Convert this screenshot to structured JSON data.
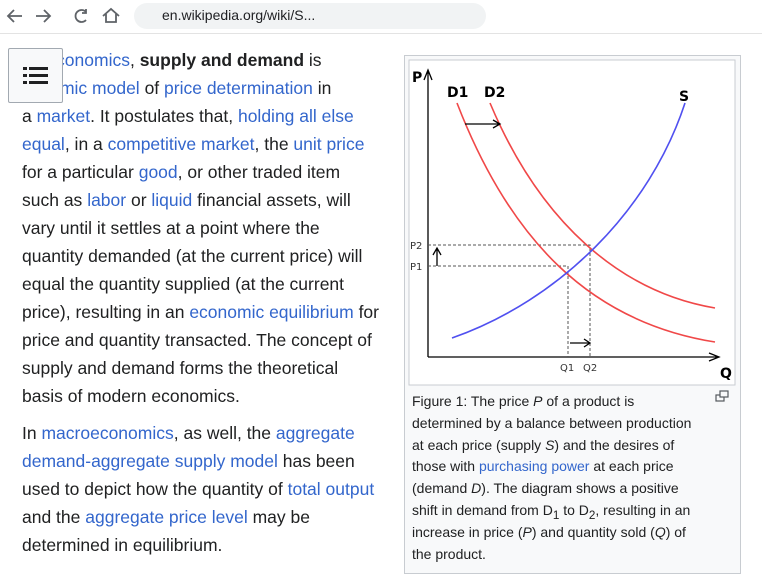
{
  "browser": {
    "url": "en.wikipedia.org/wiki/S..."
  },
  "article": {
    "paragraphs": [
      {
        "lines": [
          [
            "croeconomics",
            ", ",
            "supply and demand",
            " is"
          ],
          [
            "conomic model",
            " of ",
            "price determination",
            " in"
          ],
          [
            "a ",
            "market",
            ". It postulates that, ",
            "holding all else"
          ],
          [
            "equal",
            ", in a ",
            "competitive market",
            ", the ",
            "unit price"
          ],
          [
            "for a particular ",
            "good",
            ", or other traded item"
          ],
          [
            "such as ",
            "labor",
            " or ",
            "liquid",
            " financial assets, will"
          ],
          [
            "vary until it settles at a point where the"
          ],
          [
            "quantity demanded (at the current price) will"
          ],
          [
            "equal the quantity supplied (at the current"
          ],
          [
            "price), resulting in an ",
            "economic equilibrium",
            " for"
          ],
          [
            "price and quantity transacted. The concept of"
          ],
          [
            "supply and demand forms the theoretical"
          ],
          [
            "basis of modern economics."
          ]
        ]
      },
      {
        "lines": [
          [
            "In ",
            "macroeconomics",
            ", as well, the ",
            "aggregate"
          ],
          [
            "demand-aggregate supply model",
            " has been"
          ],
          [
            "used to depict how the quantity of ",
            "total output"
          ],
          [
            "and the ",
            "aggregate price level",
            " may be"
          ],
          [
            "determined in equilibrium."
          ]
        ]
      }
    ]
  },
  "figure": {
    "diagram": {
      "p_axis": "P",
      "q_axis": "Q",
      "d1": "D1",
      "d2": "D2",
      "s": "S",
      "p1": "P1",
      "p2": "P2",
      "q1": "Q1",
      "q2": "Q2"
    },
    "caption": [
      [
        "Figure 1: The price ",
        "P",
        " of a product is"
      ],
      [
        "determined by a balance between production"
      ],
      [
        "at each price (supply ",
        "S",
        ") and the desires of"
      ],
      [
        "those with ",
        "purchasing power",
        " at each price"
      ],
      [
        "(demand ",
        "D",
        "). The diagram shows a positive"
      ],
      [
        "shift in demand from D",
        "1",
        " to D",
        "2",
        ", resulting in an"
      ],
      [
        "increase in price (",
        "P",
        ") and quantity sold (",
        "Q",
        ") of"
      ],
      [
        "the product."
      ]
    ]
  }
}
